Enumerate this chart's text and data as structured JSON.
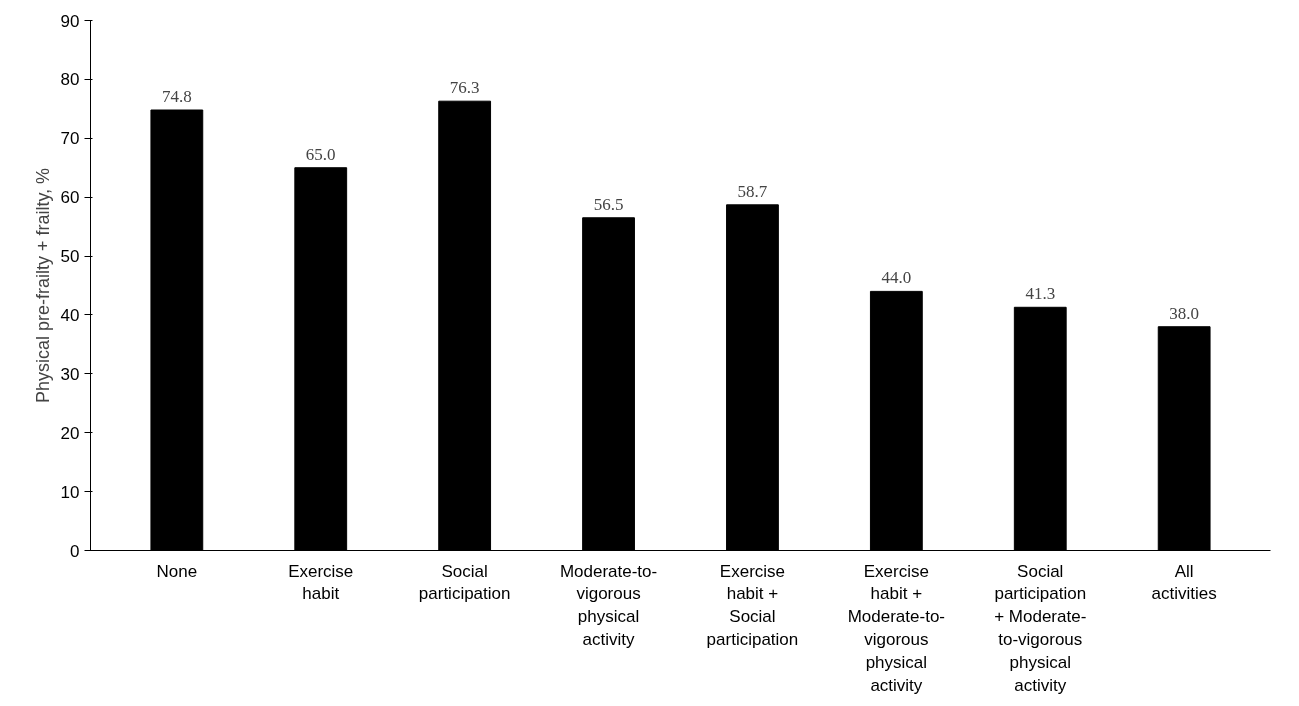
{
  "chart_data": {
    "type": "bar",
    "ylabel": "Physical pre-frailty + frailty, %",
    "categories": [
      "None",
      "Exercise habit",
      "Social participation",
      "Moderate-to-vigorous physical activity",
      "Exercise habit + Social participation",
      "Exercise habit + Moderate-to-vigorous physical activity",
      "Social participation + Moderate-to-vigorous physical activity",
      "All activities"
    ],
    "values": [
      74.8,
      65.0,
      76.3,
      56.5,
      58.7,
      44.0,
      41.3,
      38.0
    ],
    "value_labels": [
      "74.8",
      "65.0",
      "76.3",
      "56.5",
      "58.7",
      "44.0",
      "41.3",
      "38.0"
    ],
    "color": "#000000",
    "ylim": [
      0,
      90
    ],
    "yticks": [
      0,
      10,
      20,
      30,
      40,
      50,
      60,
      70,
      80,
      90
    ],
    "grid": false
  }
}
